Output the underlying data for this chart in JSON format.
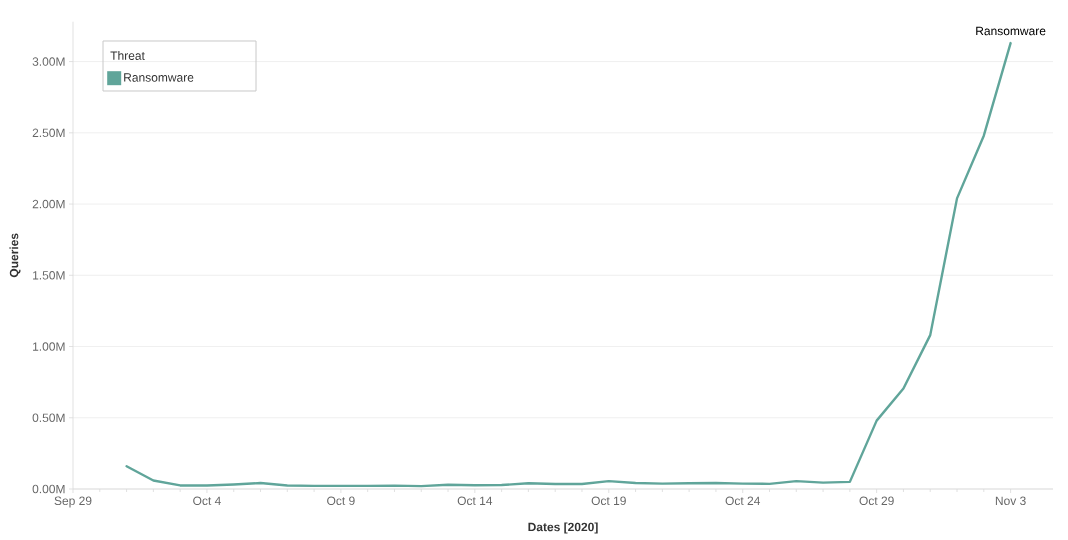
{
  "chart_data": {
    "type": "line",
    "xlabel": "Dates [2020]",
    "ylabel": "Queries",
    "legend_title": "Threat",
    "x": [
      "2020-10-01",
      "2020-10-02",
      "2020-10-03",
      "2020-10-04",
      "2020-10-05",
      "2020-10-06",
      "2020-10-07",
      "2020-10-08",
      "2020-10-09",
      "2020-10-10",
      "2020-10-11",
      "2020-10-12",
      "2020-10-13",
      "2020-10-14",
      "2020-10-15",
      "2020-10-16",
      "2020-10-17",
      "2020-10-18",
      "2020-10-19",
      "2020-10-20",
      "2020-10-21",
      "2020-10-22",
      "2020-10-23",
      "2020-10-24",
      "2020-10-25",
      "2020-10-26",
      "2020-10-27",
      "2020-10-28",
      "2020-10-29",
      "2020-10-30",
      "2020-10-31",
      "2020-11-01",
      "2020-11-02",
      "2020-11-03"
    ],
    "series": [
      {
        "name": "Ransomware",
        "color": "#60a59a",
        "values": [
          160000,
          60000,
          25000,
          25000,
          32000,
          42000,
          25000,
          22000,
          22000,
          22000,
          24000,
          20000,
          30000,
          26000,
          28000,
          40000,
          35000,
          35000,
          55000,
          42000,
          38000,
          40000,
          42000,
          38000,
          36000,
          55000,
          45000,
          50000,
          480000,
          705000,
          1080000,
          2040000,
          2480000,
          3130000
        ]
      }
    ],
    "xlim": [
      "2020-09-29",
      "2020-11-04T14:00"
    ],
    "xticks": [
      {
        "value": "2020-09-29",
        "label": "Sep 29"
      },
      {
        "value": "2020-10-04",
        "label": "Oct 4"
      },
      {
        "value": "2020-10-09",
        "label": "Oct 9"
      },
      {
        "value": "2020-10-14",
        "label": "Oct 14"
      },
      {
        "value": "2020-10-19",
        "label": "Oct 19"
      },
      {
        "value": "2020-10-24",
        "label": "Oct 24"
      },
      {
        "value": "2020-10-29",
        "label": "Oct 29"
      },
      {
        "value": "2020-11-03",
        "label": "Nov 3"
      }
    ],
    "ylim": [
      0,
      3280000
    ],
    "yticks": [
      {
        "value": 0,
        "label": "0.00M"
      },
      {
        "value": 500000,
        "label": "0.50M"
      },
      {
        "value": 1000000,
        "label": "1.00M"
      },
      {
        "value": 1500000,
        "label": "1.50M"
      },
      {
        "value": 2000000,
        "label": "2.00M"
      },
      {
        "value": 2500000,
        "label": "2.50M"
      },
      {
        "value": 3000000,
        "label": "3.00M"
      }
    ],
    "grid": "y",
    "legend": "top left"
  }
}
